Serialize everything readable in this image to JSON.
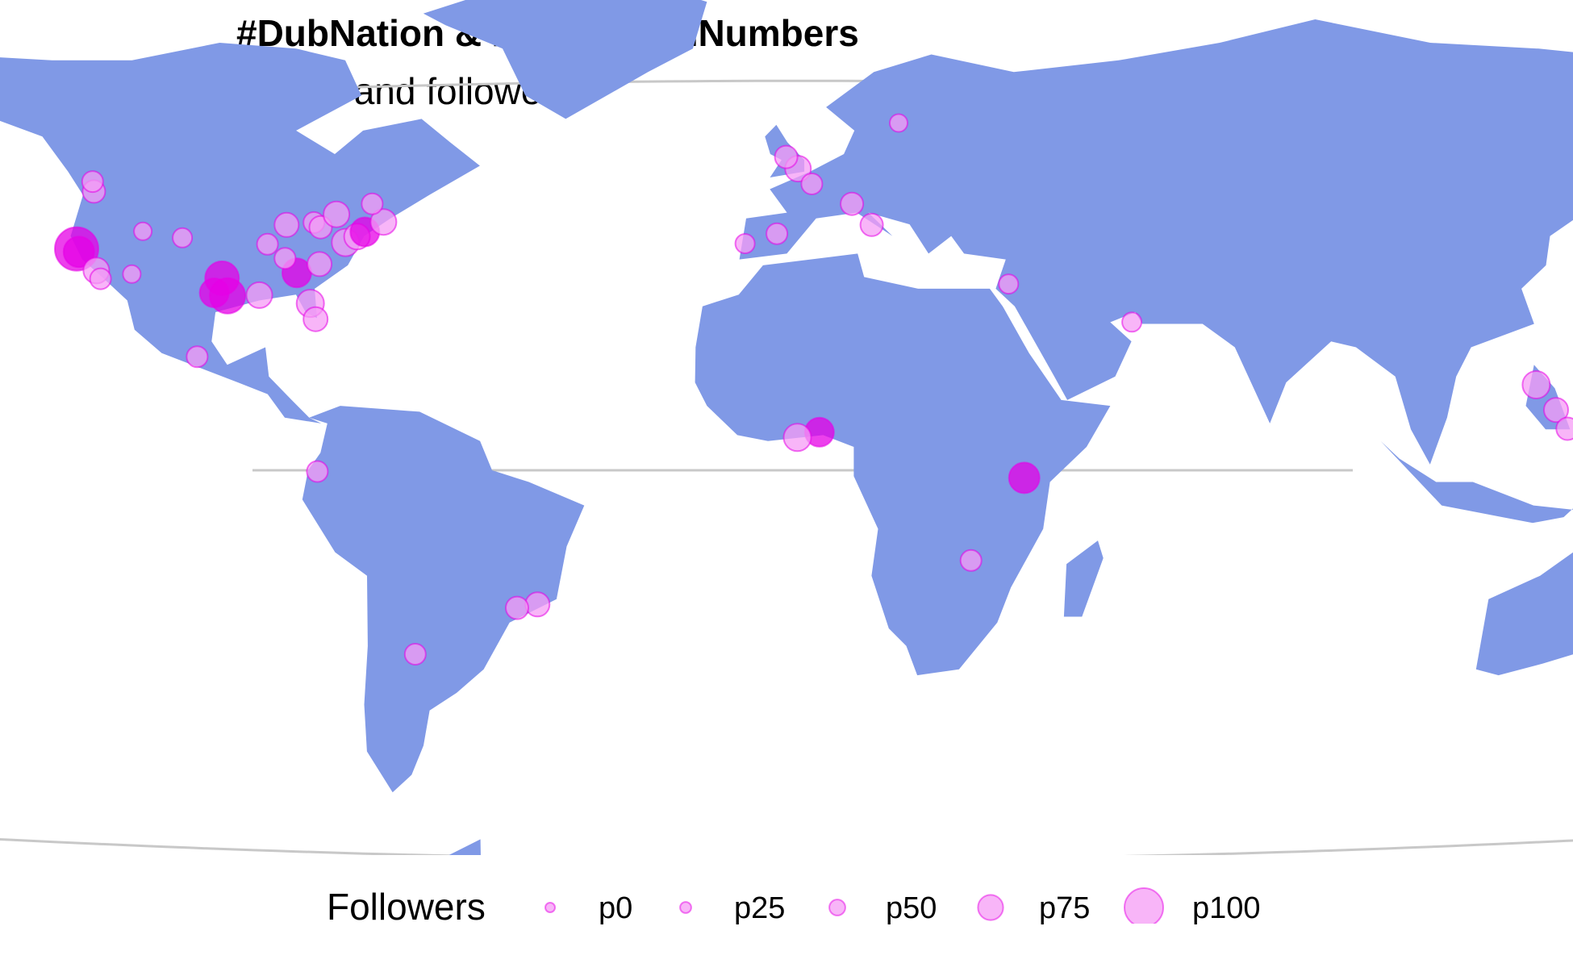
{
  "chart": {
    "title": "#DubNation & #StrengthInNumbers",
    "subtitle": "tweets and followers",
    "land_color": "#8099e6",
    "point_color": "#e600e6",
    "point_halo_color": "#f59cf5",
    "graticule_color": "#c8c8c8",
    "projection": "robinson-like",
    "graticule_lines": [
      "arctic-circle",
      "equator",
      "antarctic-circle"
    ]
  },
  "legend": {
    "title": "Followers",
    "placement": "bottom",
    "items": [
      {
        "label": "p0",
        "level": 0.0
      },
      {
        "label": "p25",
        "level": 0.25
      },
      {
        "label": "p50",
        "level": 0.5
      },
      {
        "label": "p75",
        "level": 0.75
      },
      {
        "label": "p100",
        "level": 1.0
      }
    ]
  },
  "chart_data": {
    "type": "scatter",
    "title": "#DubNation & #StrengthInNumbers",
    "subtitle": "tweets and followers",
    "x_meaning": "longitude",
    "y_meaning": "latitude",
    "size_legend": "Followers",
    "points": [
      {
        "lon": -122.4,
        "lat": 37.8,
        "followers": 1.0
      },
      {
        "lon": -121.9,
        "lat": 37.3,
        "followers": 0.6
      },
      {
        "lon": -122.3,
        "lat": 47.6,
        "followers": 0.35
      },
      {
        "lon": -123.1,
        "lat": 49.3,
        "followers": 0.3
      },
      {
        "lon": -118.2,
        "lat": 34.1,
        "followers": 0.45
      },
      {
        "lon": -117.2,
        "lat": 32.7,
        "followers": 0.3
      },
      {
        "lon": -111.9,
        "lat": 40.8,
        "followers": 0.2
      },
      {
        "lon": -112.1,
        "lat": 33.5,
        "followers": 0.2
      },
      {
        "lon": -104.9,
        "lat": 39.7,
        "followers": 0.25
      },
      {
        "lon": -97.7,
        "lat": 30.3,
        "followers": 0.55
      },
      {
        "lon": -96.8,
        "lat": 32.8,
        "followers": 0.7
      },
      {
        "lon": -95.4,
        "lat": 29.8,
        "followers": 0.75
      },
      {
        "lon": -90.1,
        "lat": 29.9,
        "followers": 0.45
      },
      {
        "lon": -87.6,
        "lat": 41.9,
        "followers": 0.4
      },
      {
        "lon": -84.4,
        "lat": 33.7,
        "followers": 0.55
      },
      {
        "lon": -81.4,
        "lat": 28.5,
        "followers": 0.5
      },
      {
        "lon": -80.2,
        "lat": 25.8,
        "followers": 0.4
      },
      {
        "lon": -83.0,
        "lat": 42.3,
        "followers": 0.3
      },
      {
        "lon": -81.7,
        "lat": 41.5,
        "followers": 0.35
      },
      {
        "lon": -79.4,
        "lat": 43.7,
        "followers": 0.45
      },
      {
        "lon": -77.0,
        "lat": 38.9,
        "followers": 0.5
      },
      {
        "lon": -75.2,
        "lat": 39.9,
        "followers": 0.45
      },
      {
        "lon": -74.0,
        "lat": 40.7,
        "followers": 0.55
      },
      {
        "lon": -71.1,
        "lat": 42.4,
        "followers": 0.45
      },
      {
        "lon": -73.6,
        "lat": 45.5,
        "followers": 0.3
      },
      {
        "lon": -80.8,
        "lat": 35.2,
        "followers": 0.4
      },
      {
        "lon": -86.8,
        "lat": 36.2,
        "followers": 0.3
      },
      {
        "lon": -90.2,
        "lat": 38.6,
        "followers": 0.3
      },
      {
        "lon": -99.1,
        "lat": 19.4,
        "followers": 0.3
      },
      {
        "lon": -78.5,
        "lat": -0.2,
        "followers": 0.3
      },
      {
        "lon": -43.2,
        "lat": -22.9,
        "followers": 0.4
      },
      {
        "lon": -46.6,
        "lat": -23.5,
        "followers": 0.35
      },
      {
        "lon": -64.2,
        "lat": -31.4,
        "followers": 0.3
      },
      {
        "lon": -0.1,
        "lat": 51.5,
        "followers": 0.45
      },
      {
        "lon": -2.2,
        "lat": 53.5,
        "followers": 0.35
      },
      {
        "lon": -3.7,
        "lat": 40.4,
        "followers": 0.3
      },
      {
        "lon": -9.1,
        "lat": 38.7,
        "followers": 0.25
      },
      {
        "lon": 2.3,
        "lat": 48.9,
        "followers": 0.3
      },
      {
        "lon": 9.2,
        "lat": 45.5,
        "followers": 0.35
      },
      {
        "lon": 12.5,
        "lat": 41.9,
        "followers": 0.35
      },
      {
        "lon": 18.0,
        "lat": 59.3,
        "followers": 0.2
      },
      {
        "lon": 35.2,
        "lat": 31.8,
        "followers": 0.25
      },
      {
        "lon": 55.3,
        "lat": 25.3,
        "followers": 0.25
      },
      {
        "lon": 3.4,
        "lat": 6.5,
        "followers": 0.55
      },
      {
        "lon": -0.2,
        "lat": 5.6,
        "followers": 0.5
      },
      {
        "lon": 36.8,
        "lat": -1.3,
        "followers": 0.6
      },
      {
        "lon": 28.3,
        "lat": -15.4,
        "followers": 0.3
      },
      {
        "lon": 121.0,
        "lat": 14.6,
        "followers": 0.5
      },
      {
        "lon": 123.9,
        "lat": 10.3,
        "followers": 0.4
      },
      {
        "lon": 125.6,
        "lat": 7.1,
        "followers": 0.35
      },
      {
        "lon": 139.7,
        "lat": 35.7,
        "followers": 0.45
      },
      {
        "lon": 153.0,
        "lat": -27.5,
        "followers": 0.35
      }
    ]
  }
}
